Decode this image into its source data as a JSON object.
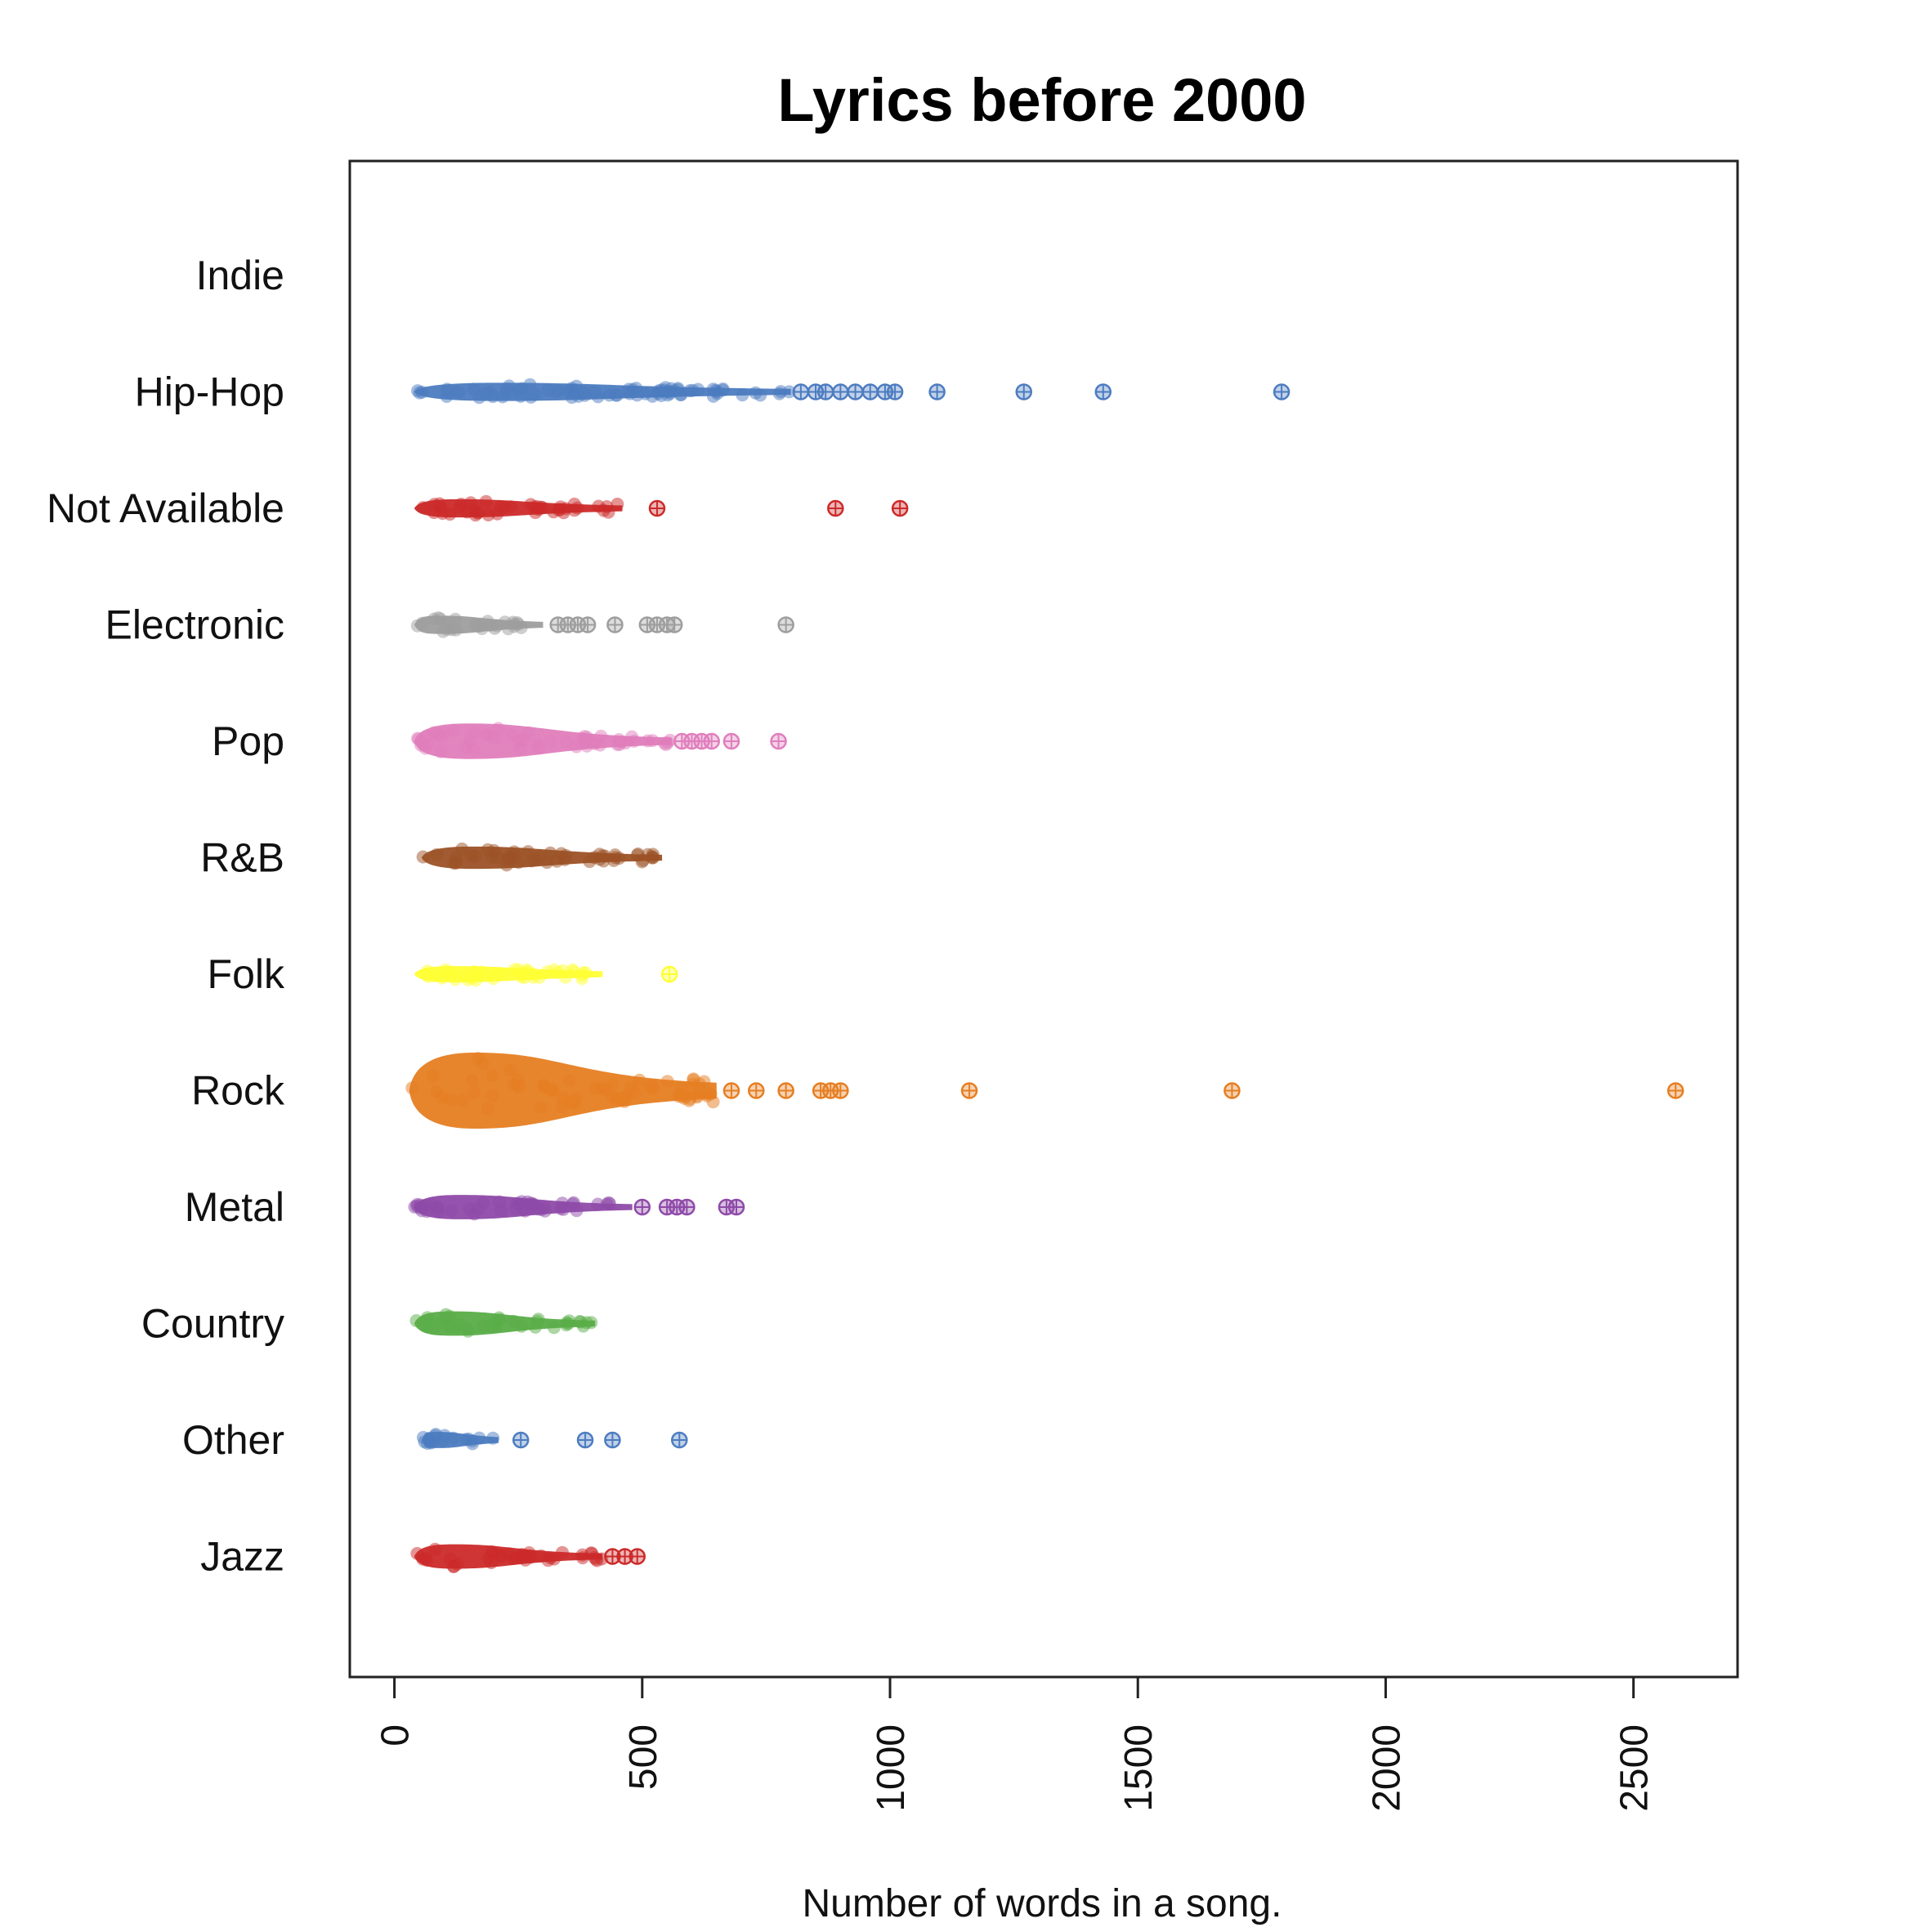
{
  "chart_data": {
    "type": "scatter",
    "title": "Lyrics before 2000",
    "xlabel": "Number of words in a song.",
    "ylabel": "",
    "xlim": [
      -90,
      2710
    ],
    "x_ticks": [
      0,
      500,
      1000,
      1500,
      2000,
      2500
    ],
    "x_tick_labels": [
      "0",
      "500",
      "1000",
      "1500",
      "2000",
      "2500"
    ],
    "grid": false,
    "legend": "none",
    "categories": [
      "Indie",
      "Hip-Hop",
      "Not Available",
      "Electronic",
      "Pop",
      "R&B",
      "Folk",
      "Rock",
      "Metal",
      "Country",
      "Other",
      "Jazz"
    ],
    "series": [
      {
        "name": "Indie",
        "color": "#4c7cc0",
        "dense": [],
        "points": []
      },
      {
        "name": "Hip-Hop",
        "color": "#4c7cc0",
        "dense": [
          [
            40,
            800,
            0.18
          ]
        ],
        "points": [
          820,
          850,
          870,
          900,
          930,
          960,
          990,
          1010,
          1095,
          1270,
          1430,
          1790
        ]
      },
      {
        "name": "Not Available",
        "color": "#cc2a2a",
        "dense": [
          [
            40,
            460,
            0.18
          ]
        ],
        "points": [
          530,
          890,
          1020
        ]
      },
      {
        "name": "Electronic",
        "color": "#9e9e9e",
        "dense": [
          [
            40,
            300,
            0.18
          ]
        ],
        "points": [
          330,
          350,
          370,
          390,
          445,
          510,
          530,
          550,
          565,
          790
        ]
      },
      {
        "name": "Pop",
        "color": "#e07ebc",
        "dense": [
          [
            40,
            560,
            0.35
          ]
        ],
        "points": [
          580,
          600,
          620,
          640,
          680,
          775
        ]
      },
      {
        "name": "R&B",
        "color": "#9c5126",
        "dense": [
          [
            55,
            540,
            0.22
          ]
        ],
        "points": []
      },
      {
        "name": "Folk",
        "color": "#ffff33",
        "dense": [
          [
            40,
            420,
            0.16
          ]
        ],
        "points": [
          555
        ]
      },
      {
        "name": "Rock",
        "color": "#e67e22",
        "dense": [
          [
            30,
            650,
            0.75
          ]
        ],
        "points": [
          680,
          730,
          790,
          860,
          880,
          900,
          1160,
          1690,
          2585
        ]
      },
      {
        "name": "Metal",
        "color": "#8e4aa8",
        "dense": [
          [
            40,
            480,
            0.24
          ]
        ],
        "points": [
          500,
          550,
          570,
          590,
          670,
          690
        ]
      },
      {
        "name": "Country",
        "color": "#5aad48",
        "dense": [
          [
            40,
            405,
            0.24
          ]
        ],
        "points": []
      },
      {
        "name": "Other",
        "color": "#4c7cc0",
        "dense": [
          [
            55,
            210,
            0.16
          ]
        ],
        "points": [
          255,
          385,
          440,
          575
        ]
      },
      {
        "name": "Jazz",
        "color": "#cc2a2a",
        "dense": [
          [
            40,
            420,
            0.24
          ]
        ],
        "points": [
          440,
          465,
          490
        ]
      }
    ]
  }
}
